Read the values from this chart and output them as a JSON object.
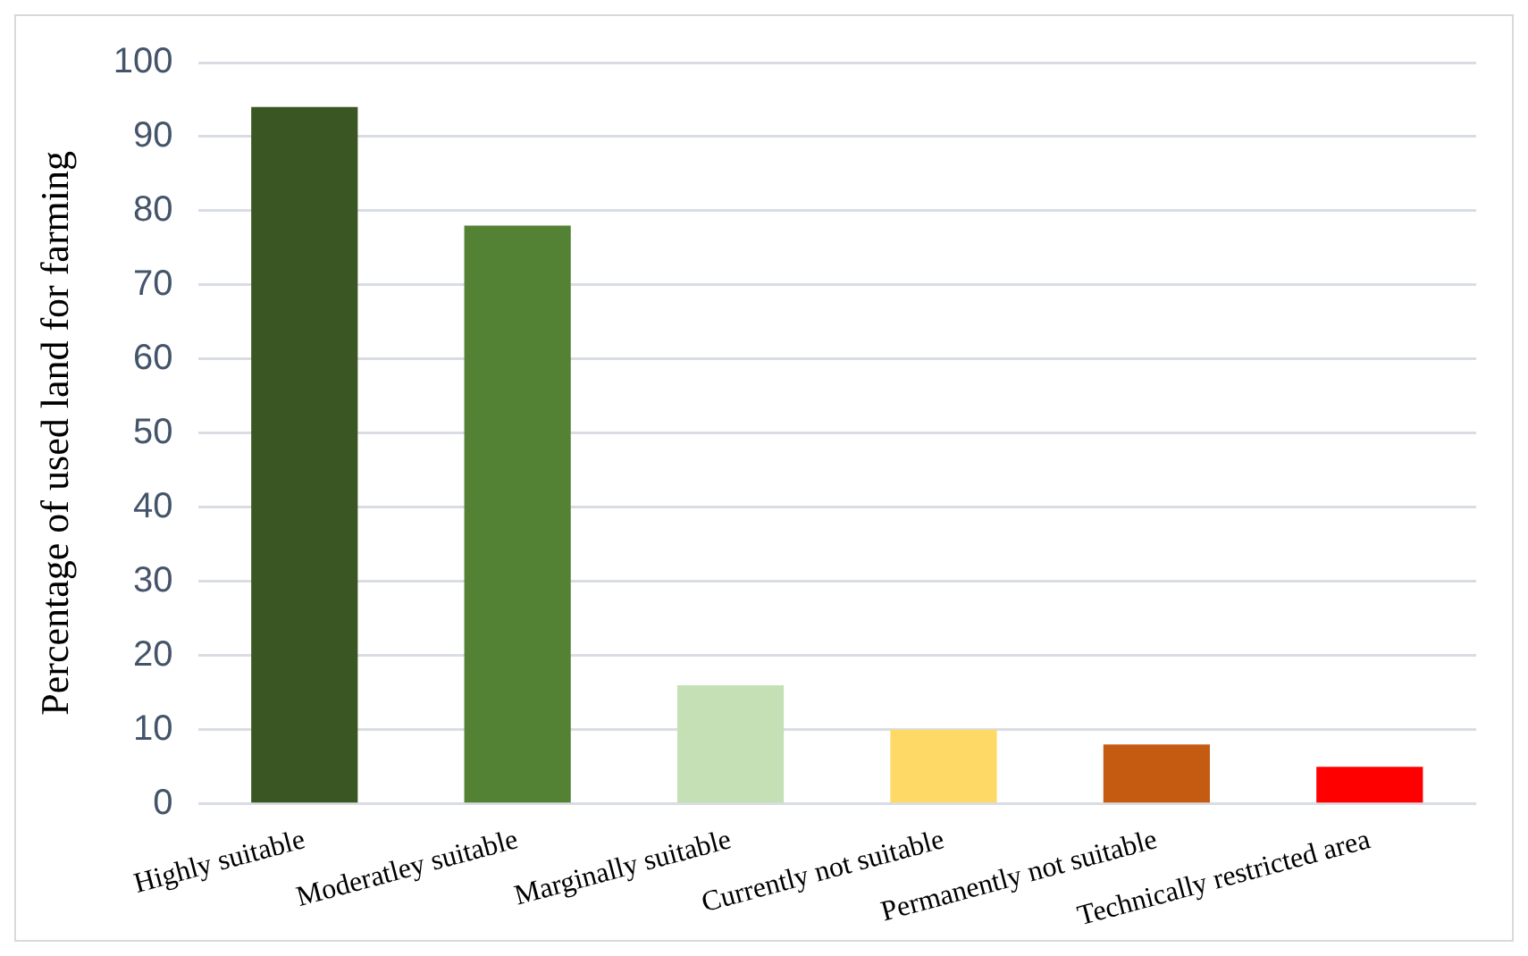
{
  "chart_data": {
    "type": "bar",
    "ylabel": "Percentage of used land for farming",
    "categories": [
      "Highly suitable",
      "Moderatley suitable",
      "Marginally suitable",
      "Currently not suitable",
      "Permanently not suitable",
      "Technically restricted area"
    ],
    "values": [
      94,
      78,
      16,
      10,
      8,
      5
    ],
    "colors": [
      "#3a5622",
      "#548235",
      "#c5e0b4",
      "#ffd966",
      "#c55a11",
      "#ff0000"
    ],
    "ylim": [
      0,
      100
    ],
    "yticks": [
      0,
      10,
      20,
      30,
      40,
      50,
      60,
      70,
      80,
      90,
      100
    ],
    "grid": "y"
  }
}
